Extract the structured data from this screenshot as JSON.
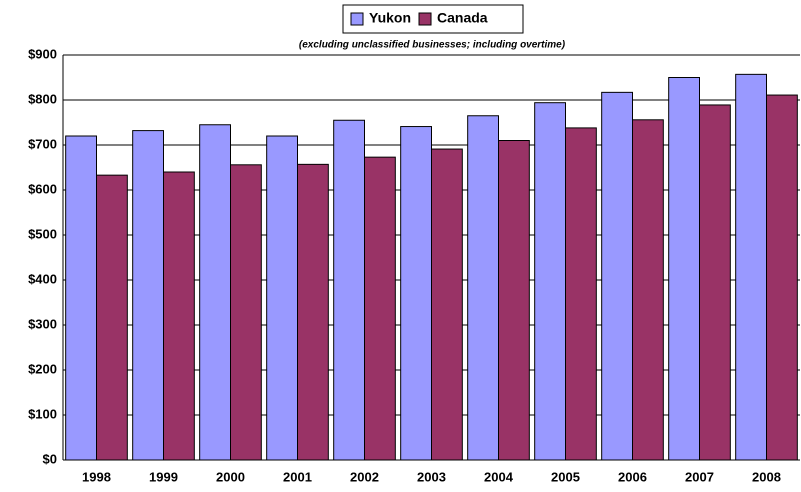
{
  "chart_data": {
    "type": "bar",
    "subtitle": "(excluding unclassified businesses; including overtime)",
    "categories": [
      "1998",
      "1999",
      "2000",
      "2001",
      "2002",
      "2003",
      "2004",
      "2005",
      "2006",
      "2007",
      "2008"
    ],
    "series": [
      {
        "name": "Yukon",
        "color": "#9999ff",
        "values": [
          720,
          732,
          745,
          720,
          755,
          741,
          765,
          794,
          817,
          850,
          857
        ]
      },
      {
        "name": "Canada",
        "color": "#993366",
        "values": [
          633,
          640,
          656,
          657,
          673,
          691,
          710,
          738,
          756,
          789,
          811
        ]
      }
    ],
    "ylim": [
      0,
      900
    ],
    "yticks": [
      {
        "value": 0,
        "label": "$0"
      },
      {
        "value": 100,
        "label": "$100"
      },
      {
        "value": 200,
        "label": "$200"
      },
      {
        "value": 300,
        "label": "$300"
      },
      {
        "value": 400,
        "label": "$400"
      },
      {
        "value": 500,
        "label": "$500"
      },
      {
        "value": 600,
        "label": "$600"
      },
      {
        "value": 700,
        "label": "$700"
      },
      {
        "value": 800,
        "label": "$800"
      },
      {
        "value": 900,
        "label": "$900"
      }
    ],
    "grid": true,
    "legend": "top"
  }
}
